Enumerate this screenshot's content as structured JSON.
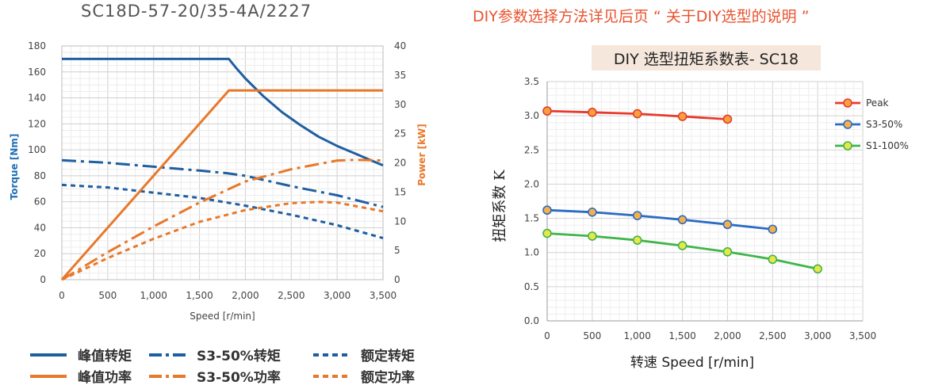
{
  "chart_data": [
    {
      "type": "line",
      "title": "SC18D-57-20/35-4A/2227",
      "xlabel": "Speed [r/min]",
      "ylabel_left": "Torque [Nm]",
      "ylabel_right": "Power [kW]",
      "xlim": [
        0,
        3500
      ],
      "ylim_left": [
        0,
        180
      ],
      "ylim_right": [
        0,
        40
      ],
      "x_ticks": [
        "0",
        "500",
        "1,000",
        "1,500",
        "2,000",
        "2,500",
        "3,000",
        "3,500"
      ],
      "y_ticks_left": [
        "0",
        "20",
        "40",
        "60",
        "80",
        "100",
        "120",
        "140",
        "160",
        "180"
      ],
      "y_ticks_right": [
        "0",
        "5",
        "10",
        "15",
        "20",
        "25",
        "30",
        "35",
        "40"
      ],
      "grid": true,
      "legend_position": "bottom",
      "colors": {
        "torque": "#1f5fa0",
        "power": "#e8782a",
        "torque_label": "#1f6fb5",
        "power_label": "#e8782a"
      },
      "series": [
        {
          "name": "峰值转矩",
          "axis": "left",
          "style": "solid",
          "color": "#1f5fa0",
          "x": [
            0,
            1820,
            1900,
            2000,
            2200,
            2400,
            2600,
            2800,
            3000,
            3200,
            3400,
            3500
          ],
          "y": [
            170,
            170,
            163,
            155,
            141,
            129,
            119,
            110,
            103,
            97,
            91,
            88
          ]
        },
        {
          "name": "S3-50%转矩",
          "axis": "left",
          "style": "dashdot",
          "color": "#1f5fa0",
          "x": [
            0,
            500,
            1000,
            1500,
            1800,
            2000,
            2500,
            3000,
            3500
          ],
          "y": [
            92,
            90,
            87,
            84,
            82,
            80,
            72,
            65,
            56
          ]
        },
        {
          "name": "额定转矩",
          "axis": "left",
          "style": "dotted",
          "color": "#1f5fa0",
          "x": [
            0,
            500,
            1000,
            1500,
            2000,
            2500,
            3000,
            3500
          ],
          "y": [
            73,
            71,
            67,
            63,
            57,
            50,
            42,
            32
          ]
        },
        {
          "name": "峰值功率",
          "axis": "right",
          "style": "solid",
          "color": "#e8782a",
          "x": [
            0,
            1820,
            3500
          ],
          "y": [
            0,
            32.4,
            32.4
          ]
        },
        {
          "name": "S3-50%功率",
          "axis": "right",
          "style": "dashdot",
          "color": "#e8782a",
          "x": [
            0,
            500,
            1000,
            1500,
            2000,
            2500,
            3000,
            3200,
            3500
          ],
          "y": [
            0,
            4.7,
            9.1,
            13.2,
            16.8,
            18.9,
            20.4,
            20.5,
            20.4
          ]
        },
        {
          "name": "额定功率",
          "axis": "right",
          "style": "dotted",
          "color": "#e8782a",
          "x": [
            0,
            500,
            1000,
            1500,
            2000,
            2500,
            2800,
            3000,
            3500
          ],
          "y": [
            0,
            3.7,
            7.0,
            9.9,
            11.9,
            13.1,
            13.3,
            13.2,
            11.7
          ]
        }
      ]
    },
    {
      "type": "line",
      "title": "DIY 选型扭矩系数表- SC18",
      "xlabel": "转速 Speed [r/min]",
      "ylabel": "扭矩系数 K",
      "xlim": [
        0,
        3500
      ],
      "ylim": [
        0,
        3.5
      ],
      "x_ticks": [
        "0",
        "500",
        "1,000",
        "1,500",
        "2,000",
        "2,500",
        "3,000",
        "3,500"
      ],
      "y_ticks": [
        "0.0",
        "0.5",
        "1.0",
        "1.5",
        "2.0",
        "2.5",
        "3.0",
        "3.5"
      ],
      "grid": true,
      "legend_position": "right",
      "series": [
        {
          "name": "Peak",
          "color": "#e83a2c",
          "marker_fill": "#f6a23c",
          "x": [
            0,
            500,
            1000,
            1500,
            2000
          ],
          "y": [
            3.07,
            3.05,
            3.03,
            2.99,
            2.95
          ]
        },
        {
          "name": "S3-50%",
          "color": "#2b6cc4",
          "marker_fill": "#f6b04a",
          "x": [
            0,
            500,
            1000,
            1500,
            2000,
            2500
          ],
          "y": [
            1.62,
            1.59,
            1.54,
            1.48,
            1.41,
            1.34
          ]
        },
        {
          "name": "S1-100%",
          "color": "#3fb54a",
          "marker_fill": "#e7e64a",
          "x": [
            0,
            500,
            1000,
            1500,
            2000,
            2500,
            3000
          ],
          "y": [
            1.28,
            1.24,
            1.18,
            1.1,
            1.01,
            0.9,
            0.76
          ]
        }
      ]
    }
  ],
  "note": "DIY参数选择方法详见后页 “ 关于DIY选型的说明 ”"
}
